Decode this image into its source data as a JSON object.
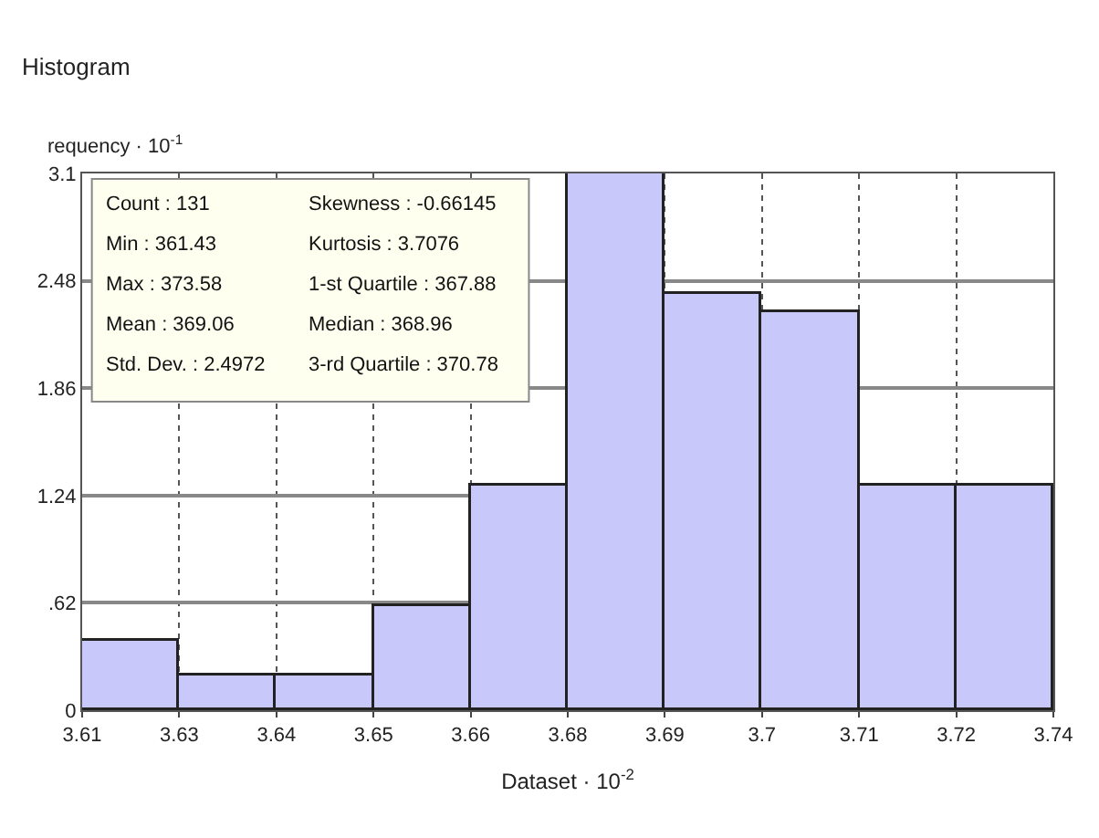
{
  "chart_data": {
    "type": "histogram",
    "title": "Histogram",
    "xlabel": "Dataset · 10$^{-2}$",
    "ylabel": "requency · 10$^{-1}$",
    "bins": [
      3.6143,
      3.62645,
      3.6386,
      3.65075,
      3.6629,
      3.67505,
      3.6872,
      3.69935,
      3.7115,
      3.72365,
      3.7358
    ],
    "values": [
      0.4,
      0.2,
      0.2,
      0.6,
      1.3,
      3.1,
      2.4,
      2.3,
      1.3,
      1.3
    ],
    "color": "#c8c8fa",
    "xlim": [
      3.6143,
      3.7358
    ],
    "xticks": [
      {
        "value": 3.6143,
        "label": "3.61"
      },
      {
        "value": 3.62645,
        "label": "3.63"
      },
      {
        "value": 3.6386,
        "label": "3.64"
      },
      {
        "value": 3.65075,
        "label": "3.65"
      },
      {
        "value": 3.6629,
        "label": "3.66"
      },
      {
        "value": 3.67505,
        "label": "3.68"
      },
      {
        "value": 3.6872,
        "label": "3.69"
      },
      {
        "value": 3.69935,
        "label": "3.7"
      },
      {
        "value": 3.7115,
        "label": "3.71"
      },
      {
        "value": 3.72365,
        "label": "3.72"
      },
      {
        "value": 3.7358,
        "label": "3.74"
      }
    ],
    "ylim": [
      0,
      3.1
    ],
    "yticks": [
      0,
      {
        "value": 0.62,
        "label": ".62"
      },
      1.24,
      1.86,
      2.48,
      3.1
    ],
    "grid": true,
    "annotations": [
      "Count : 131",
      "Min : 361.43",
      "Max : 373.58",
      "Mean : 369.06",
      "Std. Dev. : 2.4972",
      "Skewness : -0.66145",
      "Kurtosis : 3.7076",
      "1-st Quartile : 367.88",
      "Median : 368.96",
      "3-rd Quartile : 370.78"
    ]
  }
}
